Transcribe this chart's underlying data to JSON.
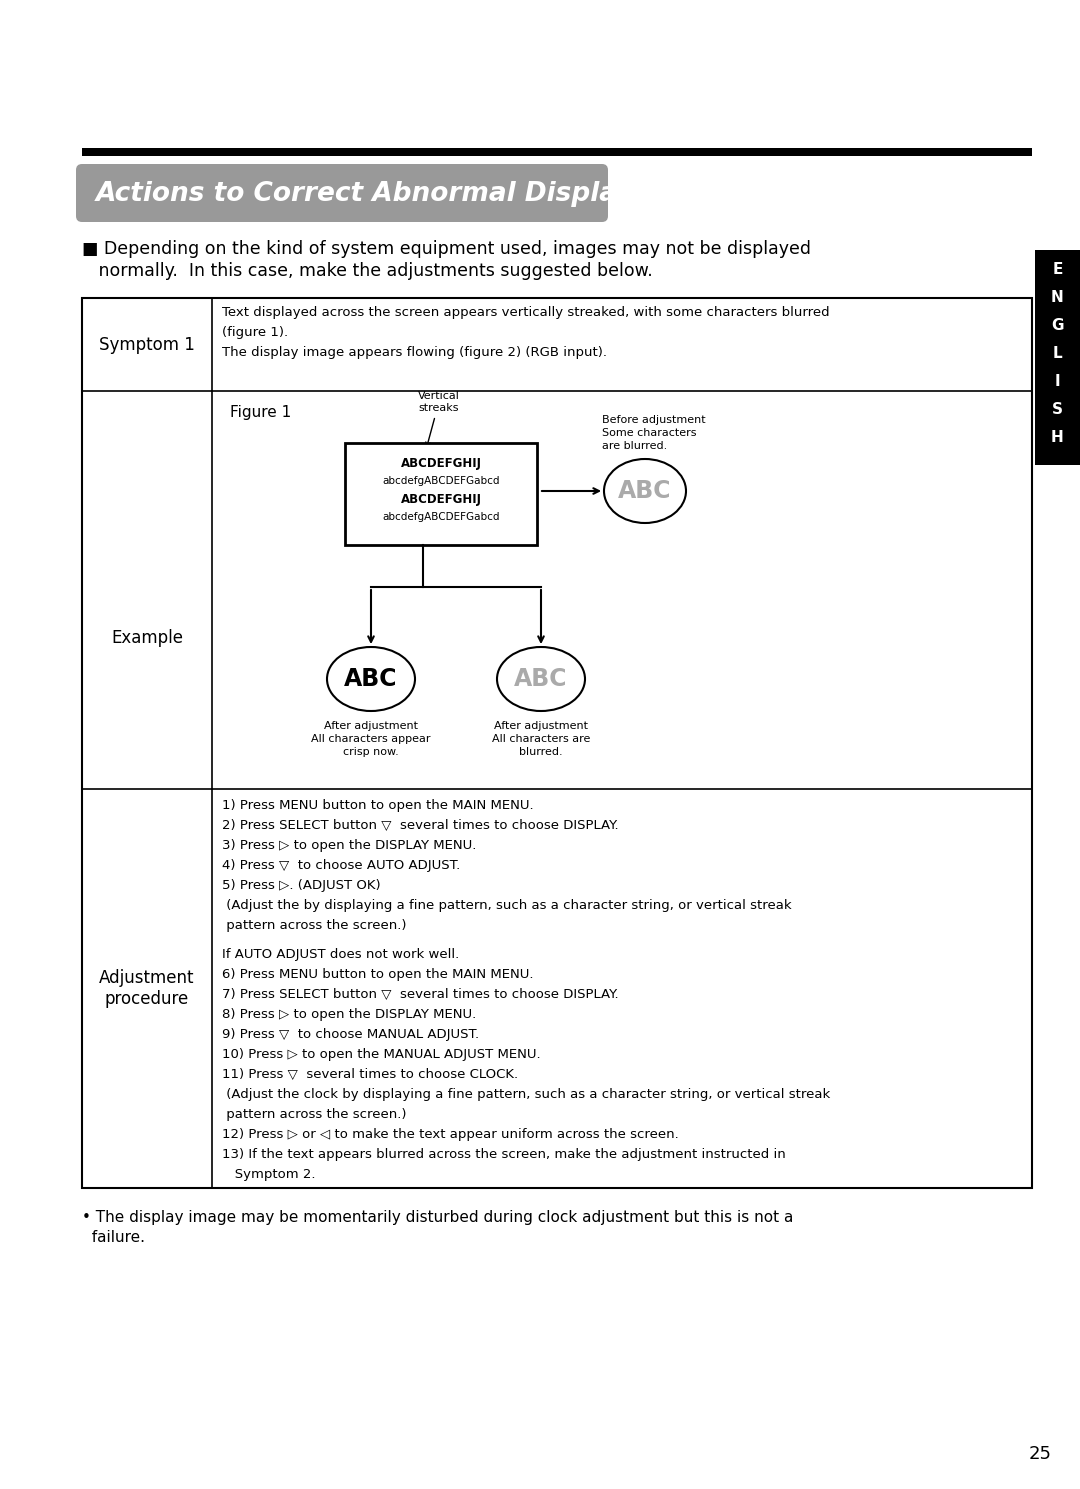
{
  "title": "Actions to Correct Abnormal Displays",
  "english_tab_text": "ENGLISH",
  "intro_text_line1": "■ Depending on the kind of system equipment used, images may not be displayed",
  "intro_text_line2": "   normally.  In this case, make the adjustments suggested below.",
  "symptom_label": "Symptom 1",
  "symptom_text_line1": "Text displayed across the screen appears vertically streaked, with some characters blurred",
  "symptom_text_line2": "(figure 1).",
  "symptom_text_line3": "The display image appears flowing (figure 2) (RGB input).",
  "example_label": "Example",
  "adjustment_label": "Adjustment\nprocedure",
  "adjustment_lines": [
    "1) Press MENU button to open the MAIN MENU.",
    "2) Press SELECT button ▽  several times to choose DISPLAY.",
    "3) Press ▷ to open the DISPLAY MENU.",
    "4) Press ▽  to choose AUTO ADJUST.",
    "5) Press ▷. (ADJUST OK)",
    " (Adjust the by displaying a fine pattern, such as a character string, or vertical streak",
    " pattern across the screen.)",
    "",
    "If AUTO ADJUST does not work well.",
    "6) Press MENU button to open the MAIN MENU.",
    "7) Press SELECT button ▽  several times to choose DISPLAY.",
    "8) Press ▷ to open the DISPLAY MENU.",
    "9) Press ▽  to choose MANUAL ADJUST.",
    "10) Press ▷ to open the MANUAL ADJUST MENU.",
    "11) Press ▽  several times to choose CLOCK.",
    " (Adjust the clock by displaying a fine pattern, such as a character string, or vertical streak",
    " pattern across the screen.)",
    "12) Press ▷ or ◁ to make the text appear uniform across the screen.",
    "13) If the text appears blurred across the screen, make the adjustment instructed in",
    "   Symptom 2."
  ],
  "footnote_line1": "• The display image may be momentarily disturbed during clock adjustment but this is not a",
  "footnote_line2": "  failure.",
  "page_number": "25"
}
